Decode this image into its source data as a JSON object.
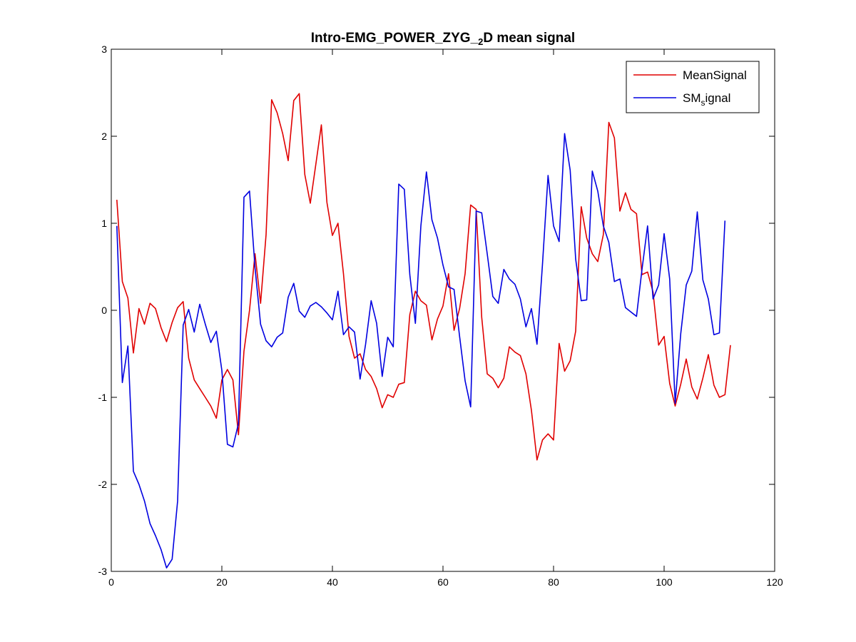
{
  "chart_data": {
    "type": "line",
    "title": "Intro-EMG_POWER_ZYG_2D mean signal",
    "xlabel": "",
    "ylabel": "",
    "xlim": [
      0,
      120
    ],
    "ylim": [
      -3,
      3
    ],
    "xticks": [
      0,
      20,
      40,
      60,
      80,
      100,
      120
    ],
    "yticks": [
      -3,
      -2,
      -1,
      0,
      1,
      2,
      3
    ],
    "grid": false,
    "legend_position": "top-right",
    "series": [
      {
        "name": "MeanSignal",
        "color": "#e00000",
        "x": [
          1,
          2,
          3,
          4,
          5,
          6,
          7,
          8,
          9,
          10,
          11,
          12,
          13,
          14,
          15,
          16,
          17,
          18,
          19,
          20,
          21,
          22,
          23,
          24,
          25,
          26,
          27,
          28,
          29,
          30,
          31,
          32,
          33,
          34,
          35,
          36,
          37,
          38,
          39,
          40,
          41,
          42,
          43,
          44,
          45,
          46,
          47,
          48,
          49,
          50,
          51,
          52,
          53,
          54,
          55,
          56,
          57,
          58,
          59,
          60,
          61,
          62,
          63,
          64,
          65,
          66,
          67,
          68,
          69,
          70,
          71,
          72,
          73,
          74,
          75,
          76,
          77,
          78,
          79,
          80,
          81,
          82,
          83,
          84,
          85,
          86,
          87,
          88,
          89,
          90,
          91,
          92,
          93,
          94,
          95,
          96,
          97,
          98,
          99,
          100,
          101,
          102,
          103,
          104,
          105,
          106,
          107,
          108,
          109,
          110,
          111,
          112
        ],
        "values": [
          1.27,
          0.33,
          0.14,
          -0.49,
          0.02,
          -0.16,
          0.08,
          0.02,
          -0.2,
          -0.36,
          -0.14,
          0.03,
          0.1,
          -0.55,
          -0.8,
          -0.9,
          -1.0,
          -1.1,
          -1.24,
          -0.8,
          -0.68,
          -0.8,
          -1.43,
          -0.47,
          0.0,
          0.65,
          0.08,
          0.87,
          2.42,
          2.27,
          2.03,
          1.72,
          2.41,
          2.49,
          1.56,
          1.23,
          1.68,
          2.13,
          1.24,
          0.86,
          1.0,
          0.42,
          -0.3,
          -0.55,
          -0.5,
          -0.68,
          -0.76,
          -0.9,
          -1.12,
          -0.97,
          -1.0,
          -0.85,
          -0.83,
          -0.05,
          0.22,
          0.11,
          0.06,
          -0.34,
          -0.1,
          0.05,
          0.42,
          -0.23,
          0.02,
          0.42,
          1.21,
          1.16,
          -0.08,
          -0.73,
          -0.78,
          -0.89,
          -0.78,
          -0.42,
          -0.48,
          -0.52,
          -0.73,
          -1.15,
          -1.72,
          -1.49,
          -1.42,
          -1.49,
          -0.38,
          -0.7,
          -0.58,
          -0.24,
          1.19,
          0.83,
          0.65,
          0.56,
          0.87,
          2.16,
          1.98,
          1.14,
          1.35,
          1.16,
          1.11,
          0.41,
          0.44,
          0.21,
          -0.4,
          -0.3,
          -0.84,
          -1.1,
          -0.85,
          -0.56,
          -0.88,
          -1.02,
          -0.78,
          -0.51,
          -0.86,
          -1.0,
          -0.97,
          -0.4
        ]
      },
      {
        "name": "SMsignal",
        "color": "#0000e0",
        "x": [
          1,
          2,
          3,
          4,
          5,
          6,
          7,
          8,
          9,
          10,
          11,
          12,
          13,
          14,
          15,
          16,
          17,
          18,
          19,
          20,
          21,
          22,
          23,
          24,
          25,
          26,
          27,
          28,
          29,
          30,
          31,
          32,
          33,
          34,
          35,
          36,
          37,
          38,
          39,
          40,
          41,
          42,
          43,
          44,
          45,
          46,
          47,
          48,
          49,
          50,
          51,
          52,
          53,
          54,
          55,
          56,
          57,
          58,
          59,
          60,
          61,
          62,
          63,
          64,
          65,
          66,
          67,
          68,
          69,
          70,
          71,
          72,
          73,
          74,
          75,
          76,
          77,
          78,
          79,
          80,
          81,
          82,
          83,
          84,
          85,
          86,
          87,
          88,
          89,
          90,
          91,
          92,
          93,
          94,
          95,
          96,
          97,
          98,
          99,
          100,
          101,
          102,
          103,
          104,
          105,
          106,
          107,
          108,
          109,
          110,
          111
        ],
        "values": [
          0.97,
          -0.83,
          -0.41,
          -1.85,
          -2.0,
          -2.19,
          -2.45,
          -2.59,
          -2.75,
          -2.96,
          -2.86,
          -2.19,
          -0.17,
          0.01,
          -0.25,
          0.07,
          -0.16,
          -0.37,
          -0.24,
          -0.69,
          -1.54,
          -1.57,
          -1.3,
          1.3,
          1.37,
          0.49,
          -0.16,
          -0.35,
          -0.42,
          -0.31,
          -0.26,
          0.15,
          0.31,
          -0.01,
          -0.08,
          0.05,
          0.09,
          0.04,
          -0.03,
          -0.11,
          0.22,
          -0.28,
          -0.19,
          -0.25,
          -0.79,
          -0.39,
          0.11,
          -0.15,
          -0.76,
          -0.31,
          -0.42,
          1.45,
          1.39,
          0.41,
          -0.15,
          0.97,
          1.59,
          1.04,
          0.83,
          0.52,
          0.27,
          0.24,
          -0.3,
          -0.81,
          -1.11,
          1.14,
          1.12,
          0.65,
          0.16,
          0.08,
          0.47,
          0.36,
          0.3,
          0.13,
          -0.19,
          0.02,
          -0.39,
          0.53,
          1.55,
          0.97,
          0.79,
          2.03,
          1.61,
          0.59,
          0.11,
          0.12,
          1.6,
          1.37,
          0.97,
          0.78,
          0.33,
          0.36,
          0.03,
          -0.02,
          -0.07,
          0.47,
          0.97,
          0.13,
          0.29,
          0.88,
          0.36,
          -1.07,
          -0.27,
          0.29,
          0.45,
          1.13,
          0.35,
          0.13,
          -0.28,
          -0.26,
          1.03
        ]
      }
    ]
  }
}
